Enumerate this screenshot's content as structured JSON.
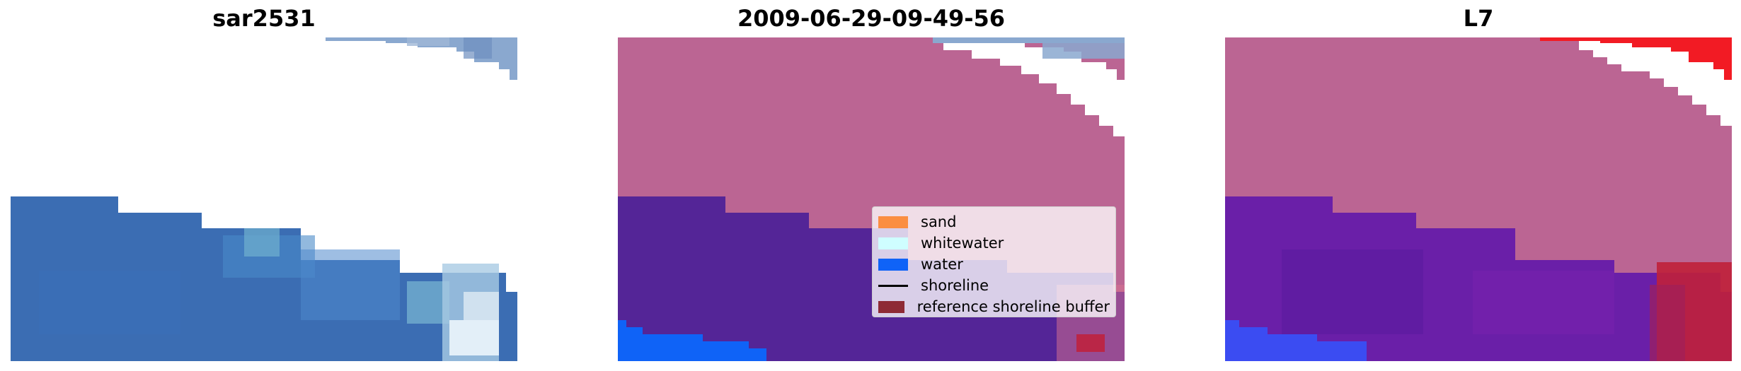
{
  "panels": [
    {
      "title": "sar2531"
    },
    {
      "title": "2009-06-29-09-49-56"
    },
    {
      "title": "L7"
    }
  ],
  "legend": {
    "items": [
      {
        "label": "sand",
        "color": "#fb8e42",
        "kind": "patch",
        "name": "legend-item-sand"
      },
      {
        "label": "whitewater",
        "color": "#cffeff",
        "kind": "patch",
        "name": "legend-item-whitewater"
      },
      {
        "label": "water",
        "color": "#0f63f7",
        "kind": "patch",
        "name": "legend-item-water"
      },
      {
        "label": "shoreline",
        "color": "#000000",
        "kind": "line",
        "name": "legend-item-shoreline"
      },
      {
        "label": "reference shoreline buffer",
        "color": "#8e2a35",
        "kind": "patch",
        "name": "legend-item-reference-shoreline-buffer"
      }
    ]
  },
  "colors": {
    "land_mask": "#bb6593",
    "water_class": "#542597",
    "ocean_blue": "#3b6db3",
    "cloud_blue": "#8aa8cf",
    "buffer_red": "#c0203a",
    "false_red": "#f21b24"
  }
}
